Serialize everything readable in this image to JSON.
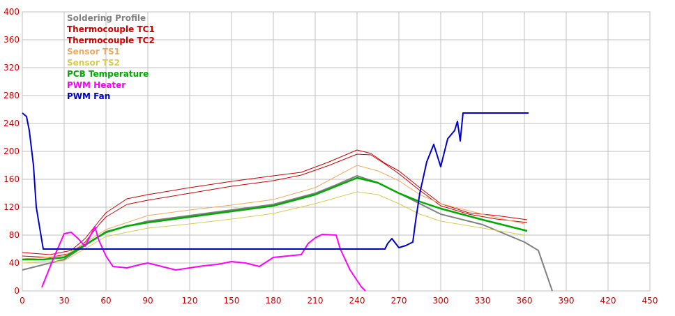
{
  "chart_data": {
    "type": "line",
    "xlim": [
      0,
      450
    ],
    "ylim": [
      0,
      400
    ],
    "grid": true,
    "legend_placement": "top-left",
    "x_ticks": [
      "0",
      "30",
      "60",
      "90",
      "120",
      "150",
      "180",
      "210",
      "240",
      "270",
      "300",
      "330",
      "360",
      "390",
      "420",
      "450"
    ],
    "y_ticks": [
      "0",
      "40",
      "80",
      "120",
      "160",
      "200",
      "240",
      "280",
      "320",
      "360",
      "400"
    ],
    "series": [
      {
        "name": "Soldering Profile",
        "color": "#808080",
        "x": [
          0,
          30,
          60,
          90,
          120,
          150,
          180,
          210,
          225,
          240,
          255,
          270,
          285,
          300,
          330,
          360,
          370,
          380
        ],
        "y": [
          30,
          45,
          85,
          100,
          108,
          116,
          124,
          140,
          152,
          165,
          155,
          140,
          125,
          110,
          95,
          70,
          58,
          0
        ]
      },
      {
        "name": "Thermocouple TC1",
        "color": "#cc0000",
        "x": [
          0,
          20,
          35,
          45,
          55,
          60,
          75,
          90,
          120,
          150,
          180,
          200,
          220,
          240,
          250,
          260,
          270,
          285,
          300,
          320,
          340,
          362
        ],
        "y": [
          55,
          52,
          58,
          75,
          100,
          112,
          132,
          138,
          148,
          157,
          165,
          170,
          185,
          202,
          197,
          183,
          172,
          148,
          125,
          112,
          108,
          102
        ]
      },
      {
        "name": "Thermocouple TC2",
        "color": "#cc0000",
        "x": [
          0,
          20,
          35,
          45,
          55,
          60,
          75,
          90,
          120,
          150,
          180,
          200,
          220,
          240,
          250,
          260,
          270,
          285,
          300,
          320,
          340,
          362
        ],
        "y": [
          50,
          48,
          54,
          70,
          95,
          106,
          124,
          130,
          140,
          150,
          158,
          166,
          180,
          196,
          195,
          182,
          168,
          144,
          122,
          110,
          103,
          98
        ]
      },
      {
        "name": "Sensor TS1",
        "color": "#f0a860",
        "x": [
          0,
          30,
          60,
          90,
          120,
          150,
          180,
          210,
          240,
          255,
          270,
          285,
          300,
          330,
          360
        ],
        "y": [
          46,
          50,
          88,
          108,
          116,
          123,
          131,
          148,
          180,
          172,
          158,
          138,
          125,
          110,
          96
        ]
      },
      {
        "name": "Sensor TS2",
        "color": "#d8cc50",
        "x": [
          0,
          30,
          60,
          90,
          120,
          150,
          180,
          210,
          240,
          255,
          270,
          285,
          300,
          330,
          360
        ],
        "y": [
          40,
          43,
          78,
          90,
          96,
          103,
          111,
          125,
          142,
          138,
          125,
          110,
          100,
          90,
          80
        ]
      },
      {
        "name": "PCB Temperature",
        "color": "#00aa00",
        "x": [
          0,
          15,
          30,
          45,
          60,
          75,
          90,
          120,
          150,
          180,
          210,
          225,
          240,
          255,
          270,
          285,
          300,
          330,
          362
        ],
        "y": [
          45,
          45,
          48,
          66,
          84,
          93,
          98,
          106,
          114,
          122,
          138,
          150,
          162,
          155,
          140,
          128,
          118,
          102,
          86
        ]
      },
      {
        "name": "PWM Heater",
        "color": "#ff00ff",
        "x": [
          14,
          22,
          30,
          35,
          40,
          45,
          52,
          55,
          60,
          65,
          75,
          85,
          90,
          100,
          110,
          120,
          130,
          140,
          150,
          160,
          170,
          180,
          190,
          200,
          205,
          210,
          215,
          225,
          228,
          235,
          240,
          243,
          246
        ],
        "y": [
          5,
          45,
          82,
          84,
          75,
          64,
          92,
          72,
          50,
          35,
          33,
          38,
          40,
          35,
          30,
          33,
          36,
          38,
          42,
          40,
          35,
          48,
          50,
          52,
          68,
          76,
          81,
          80,
          60,
          30,
          15,
          6,
          0
        ]
      },
      {
        "name": "PWM Fan",
        "color": "#0000cc",
        "x": [
          0,
          3,
          5,
          8,
          10,
          15,
          30,
          60,
          90,
          120,
          150,
          180,
          210,
          240,
          260,
          262,
          265,
          270,
          275,
          280,
          282,
          285,
          290,
          295,
          300,
          305,
          310,
          312,
          314,
          316,
          330,
          363
        ],
        "y": [
          255,
          250,
          230,
          180,
          120,
          60,
          60,
          60,
          60,
          60,
          60,
          60,
          60,
          60,
          60,
          68,
          75,
          62,
          65,
          70,
          100,
          140,
          185,
          210,
          178,
          218,
          230,
          243,
          215,
          255,
          255,
          255
        ]
      }
    ]
  }
}
